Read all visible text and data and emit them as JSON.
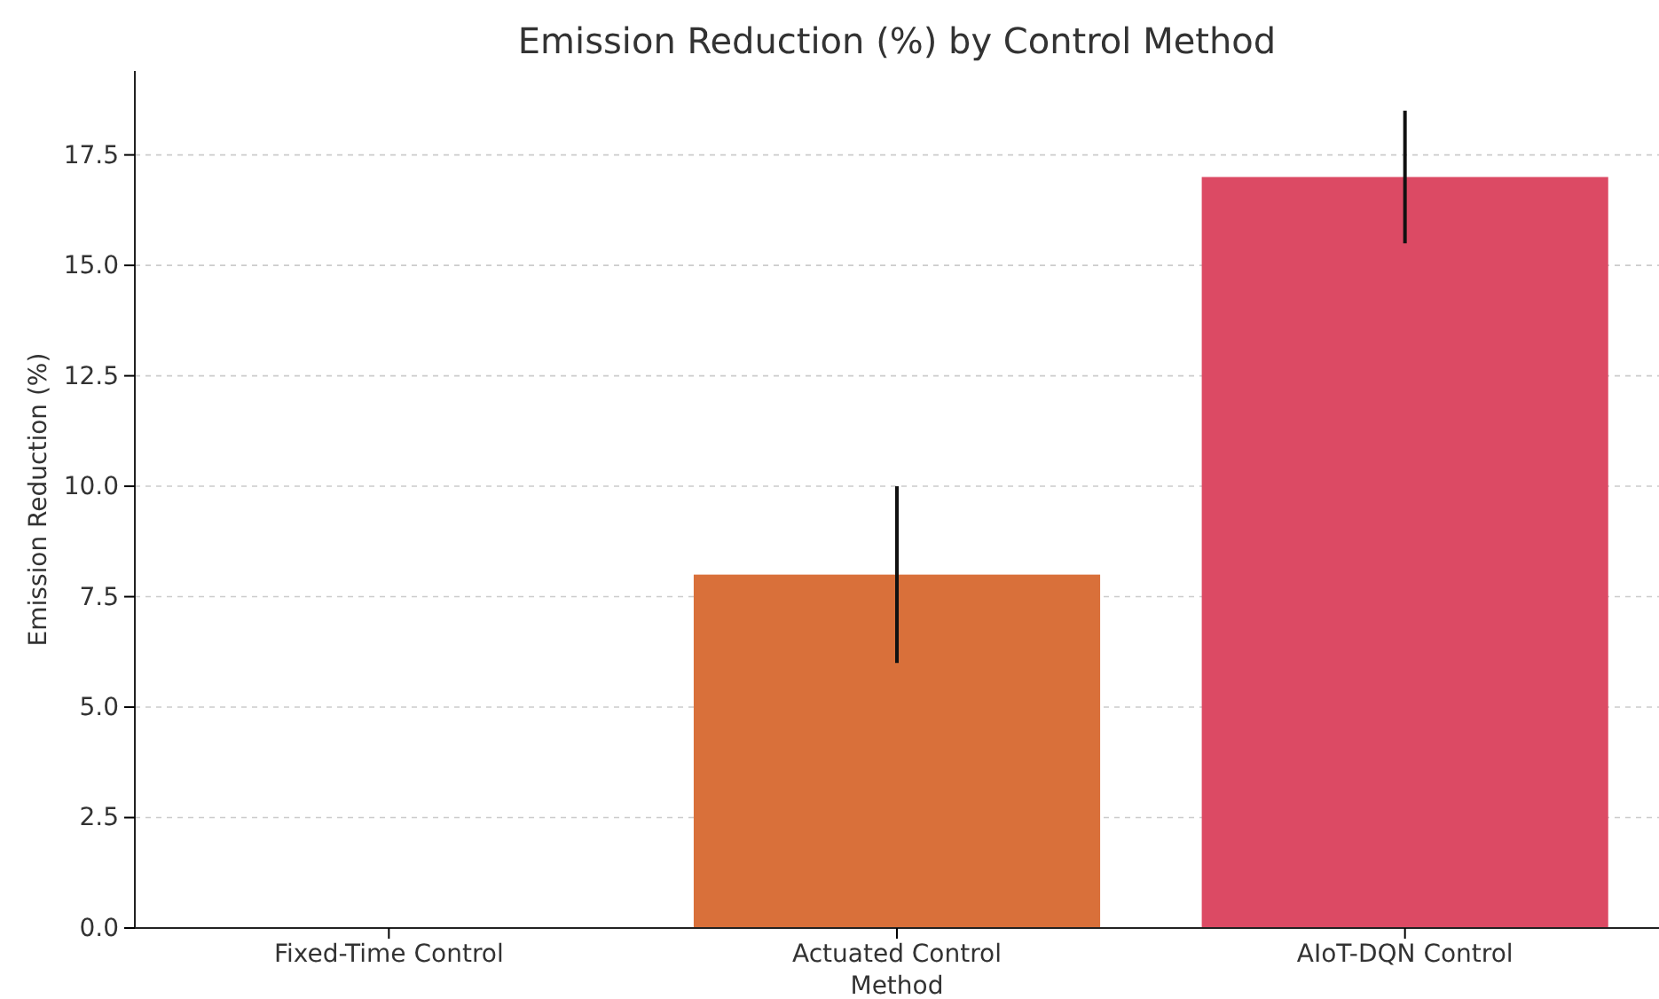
{
  "chart_data": {
    "type": "bar",
    "title": "Emission Reduction (%) by Control Method",
    "xlabel": "Method",
    "ylabel": "Emission Reduction (%)",
    "categories": [
      "Fixed-Time Control",
      "Actuated Control",
      "AIoT-DQN Control"
    ],
    "values": [
      0,
      8,
      17
    ],
    "colors": [
      "#4c72b0",
      "#d9703a",
      "#dc4a64"
    ],
    "errors": [
      null,
      2,
      1.5
    ],
    "ylim": [
      0,
      19.4
    ],
    "yticks": [
      {
        "value": 0,
        "label": "0.0"
      },
      {
        "value": 2.5,
        "label": "2.5"
      },
      {
        "value": 5,
        "label": "5.0"
      },
      {
        "value": 7.5,
        "label": "7.5"
      },
      {
        "value": 10,
        "label": "10.0"
      },
      {
        "value": 12.5,
        "label": "12.5"
      },
      {
        "value": 15,
        "label": "15.0"
      },
      {
        "value": 17.5,
        "label": "17.5"
      }
    ],
    "grid": "y"
  }
}
